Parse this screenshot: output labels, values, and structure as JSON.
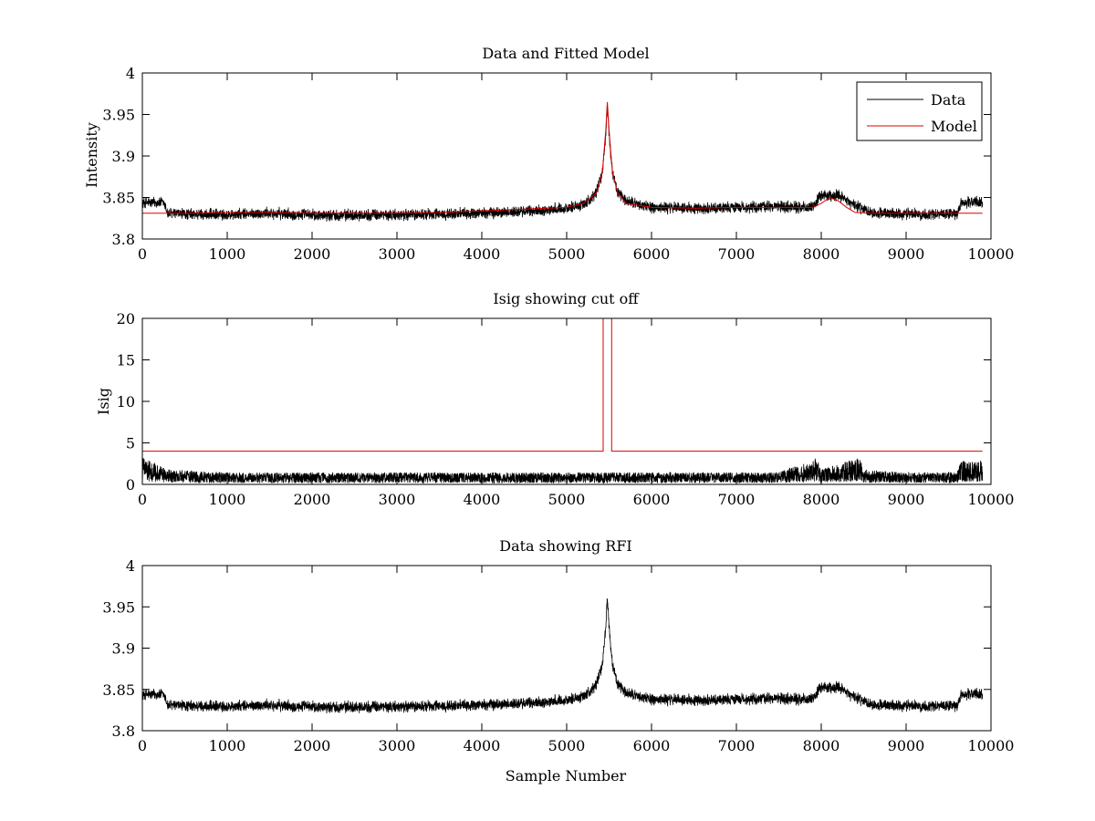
{
  "figure": {
    "background": "#ffffff"
  },
  "chart_data": [
    {
      "id": "top",
      "type": "line",
      "title": "Data and Fitted Model",
      "xlabel": "",
      "ylabel": "Intensity",
      "xlim": [
        0,
        10000
      ],
      "ylim": [
        3.8,
        4.0
      ],
      "xticks": [
        0,
        1000,
        2000,
        3000,
        4000,
        5000,
        6000,
        7000,
        8000,
        9000,
        10000
      ],
      "yticks": [
        3.8,
        3.85,
        3.9,
        3.95,
        4.0
      ],
      "ytick_labels": [
        "3.8",
        "3.85",
        "3.9",
        "3.95",
        "4"
      ],
      "grid": false,
      "legend": {
        "position": "top-right",
        "entries": [
          "Data",
          "Model"
        ]
      },
      "series": [
        {
          "name": "Data",
          "color": "#000000",
          "x": [
            0,
            250,
            300,
            500,
            1000,
            1500,
            2000,
            2500,
            3000,
            3500,
            4000,
            4500,
            5000,
            5200,
            5350,
            5420,
            5460,
            5480,
            5500,
            5540,
            5600,
            5700,
            6000,
            6500,
            7000,
            7500,
            7900,
            8000,
            8200,
            8400,
            8600,
            9000,
            9500,
            9600,
            9650,
            9900
          ],
          "y": [
            3.844,
            3.844,
            3.831,
            3.83,
            3.829,
            3.831,
            3.829,
            3.829,
            3.829,
            3.83,
            3.831,
            3.833,
            3.837,
            3.842,
            3.855,
            3.88,
            3.925,
            3.962,
            3.925,
            3.88,
            3.856,
            3.845,
            3.838,
            3.837,
            3.838,
            3.839,
            3.838,
            3.853,
            3.852,
            3.84,
            3.832,
            3.83,
            3.83,
            3.83,
            3.844,
            3.845
          ],
          "noise_amplitude": 0.007
        },
        {
          "name": "Model",
          "color": "#dd0000",
          "x": [
            0,
            500,
            1000,
            1500,
            2000,
            2500,
            3000,
            3500,
            4000,
            4500,
            5000,
            5200,
            5350,
            5420,
            5460,
            5480,
            5500,
            5540,
            5600,
            5700,
            6000,
            6500,
            7000,
            7500,
            7900,
            8000,
            8100,
            8200,
            8300,
            8400,
            8600,
            9000,
            9500,
            9600,
            9900
          ],
          "y": [
            3.831,
            3.831,
            3.832,
            3.832,
            3.831,
            3.831,
            3.831,
            3.832,
            3.834,
            3.836,
            3.838,
            3.843,
            3.855,
            3.88,
            3.93,
            3.965,
            3.93,
            3.88,
            3.856,
            3.843,
            3.838,
            3.837,
            3.838,
            3.838,
            3.838,
            3.843,
            3.85,
            3.846,
            3.838,
            3.832,
            3.831,
            3.831,
            3.831,
            3.831,
            3.831
          ]
        }
      ]
    },
    {
      "id": "middle",
      "type": "line",
      "title": "Isig showing cut off",
      "xlabel": "",
      "ylabel": "Isig",
      "xlim": [
        0,
        10000
      ],
      "ylim": [
        0,
        20
      ],
      "xticks": [
        0,
        1000,
        2000,
        3000,
        4000,
        5000,
        6000,
        7000,
        8000,
        9000,
        10000
      ],
      "yticks": [
        0,
        5,
        10,
        15,
        20
      ],
      "ytick_labels": [
        "0",
        "5",
        "10",
        "15",
        "20"
      ],
      "grid": false,
      "series": [
        {
          "name": "Isig",
          "color": "#000000",
          "x": [
            0,
            300,
            1000,
            3000,
            5000,
            6000,
            7500,
            7950,
            8000,
            8450,
            8500,
            9000,
            9600,
            9650,
            9900
          ],
          "y": [
            1.8,
            1.0,
            0.8,
            0.8,
            0.8,
            0.8,
            0.8,
            1.8,
            1.0,
            1.8,
            1.0,
            0.8,
            0.8,
            1.6,
            1.6
          ],
          "noise_amplitude": 0.9
        },
        {
          "name": "Cut off",
          "color": "#dd0000",
          "x": [
            0,
            5430,
            5430,
            5530,
            5530,
            9900
          ],
          "y": [
            4,
            4,
            20,
            20,
            4,
            4
          ]
        }
      ]
    },
    {
      "id": "bottom",
      "type": "line",
      "title": "Data showing RFI",
      "xlabel": "Sample Number",
      "ylabel": "",
      "xlim": [
        0,
        10000
      ],
      "ylim": [
        3.8,
        4.0
      ],
      "xticks": [
        0,
        1000,
        2000,
        3000,
        4000,
        5000,
        6000,
        7000,
        8000,
        9000,
        10000
      ],
      "yticks": [
        3.8,
        3.85,
        3.9,
        3.95,
        4.0
      ],
      "ytick_labels": [
        "3.8",
        "3.85",
        "3.9",
        "3.95",
        "4"
      ],
      "grid": false,
      "series": [
        {
          "name": "Data",
          "color": "#000000",
          "x": [
            0,
            250,
            300,
            500,
            1000,
            1500,
            2000,
            2500,
            3000,
            3500,
            4000,
            4500,
            5000,
            5200,
            5350,
            5420,
            5460,
            5480,
            5500,
            5540,
            5600,
            5700,
            6000,
            6500,
            7000,
            7500,
            7900,
            8000,
            8200,
            8400,
            8600,
            9000,
            9500,
            9600,
            9650,
            9900
          ],
          "y": [
            3.844,
            3.844,
            3.831,
            3.83,
            3.829,
            3.831,
            3.829,
            3.829,
            3.829,
            3.83,
            3.831,
            3.833,
            3.837,
            3.842,
            3.855,
            3.88,
            3.925,
            3.962,
            3.925,
            3.88,
            3.856,
            3.845,
            3.838,
            3.837,
            3.838,
            3.839,
            3.838,
            3.853,
            3.852,
            3.84,
            3.832,
            3.83,
            3.83,
            3.83,
            3.844,
            3.845
          ],
          "noise_amplitude": 0.007
        }
      ]
    }
  ]
}
